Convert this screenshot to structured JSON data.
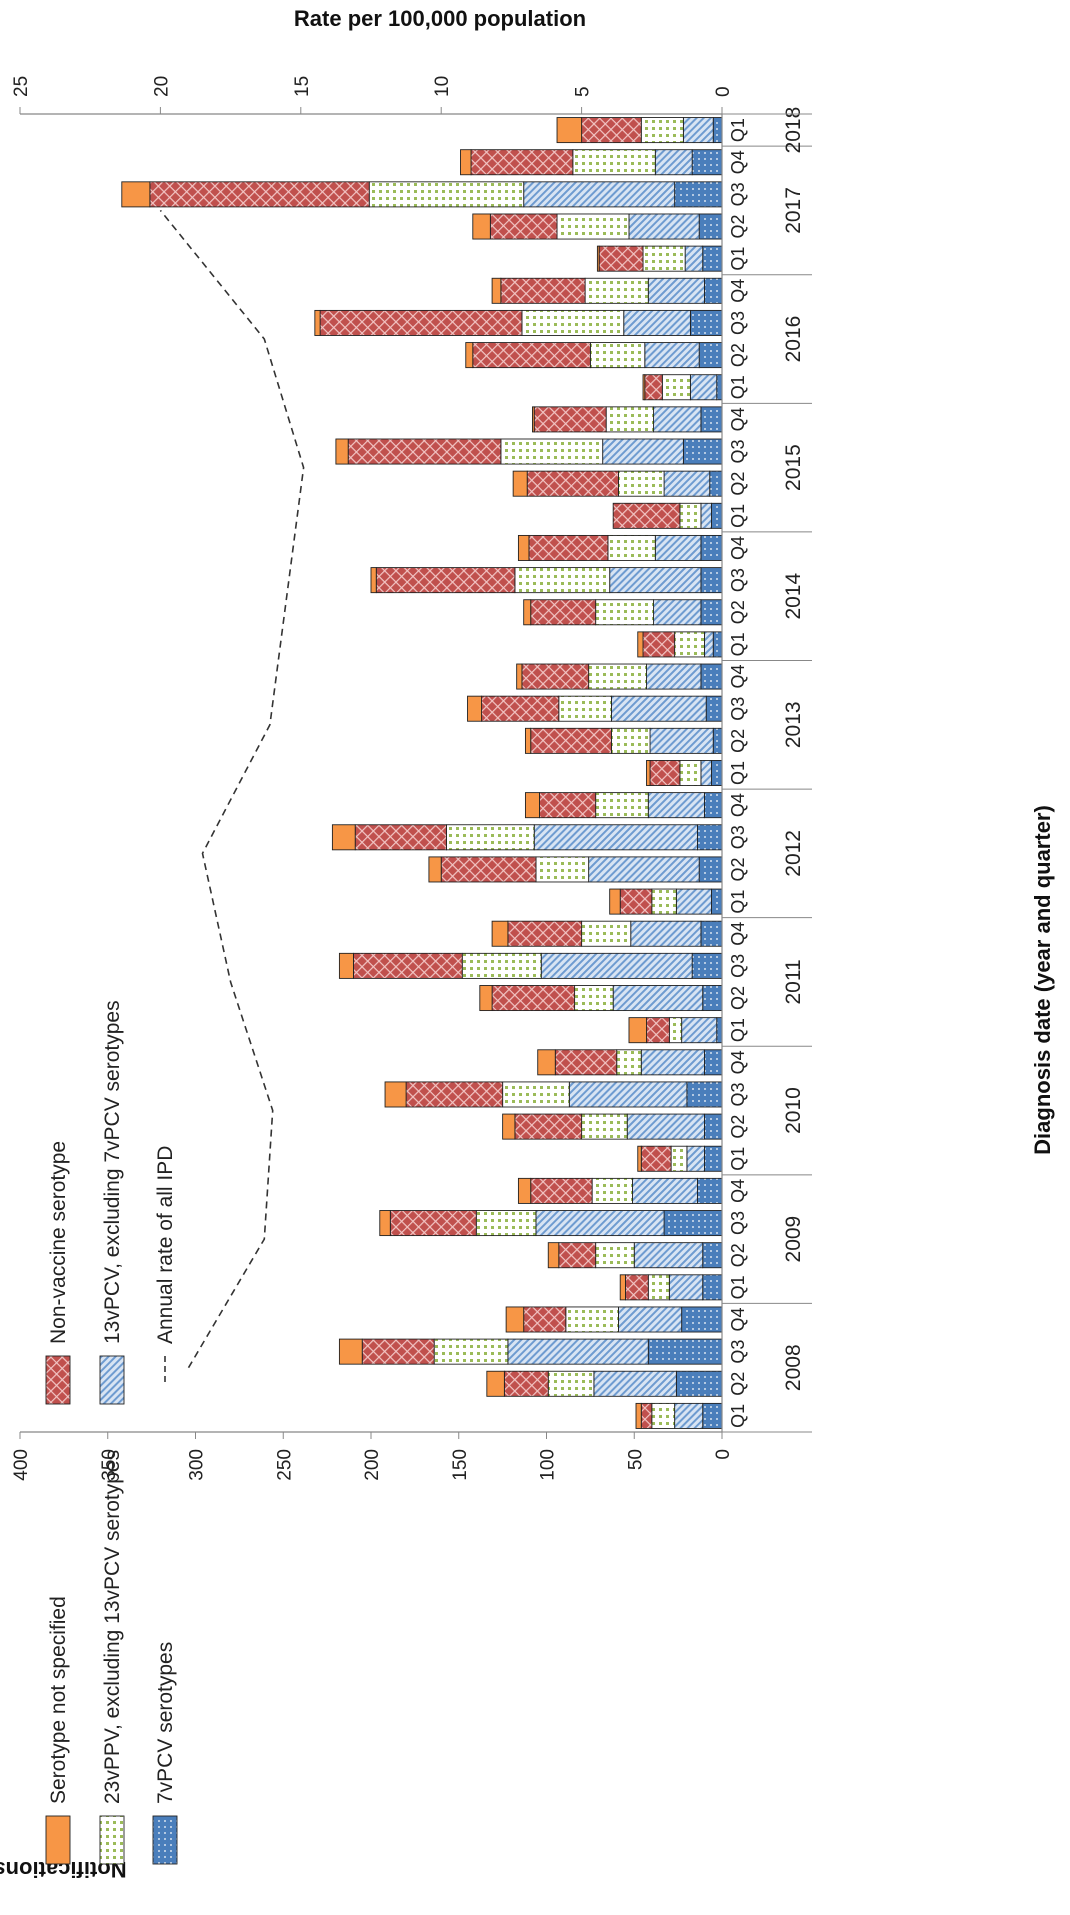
{
  "chart_data": {
    "type": "bar",
    "stacked": true,
    "orientation": "rotated-90",
    "left_axis": {
      "label": "Notifications",
      "ylim": [
        0,
        400
      ],
      "ticks": [
        0,
        50,
        100,
        150,
        200,
        250,
        300,
        350,
        400
      ]
    },
    "right_axis": {
      "label": "Rate per 100,000 population",
      "ylim": [
        0,
        25
      ],
      "ticks": [
        0,
        5,
        10,
        15,
        20,
        25
      ]
    },
    "xlabel": "Diagnosis date (year and quarter)",
    "years": [
      "2008",
      "2009",
      "2010",
      "2011",
      "2012",
      "2013",
      "2014",
      "2015",
      "2016",
      "2017",
      "2018"
    ],
    "categories": [
      "Q1",
      "Q2",
      "Q3",
      "Q4",
      "Q1",
      "Q2",
      "Q3",
      "Q4",
      "Q1",
      "Q2",
      "Q3",
      "Q4",
      "Q1",
      "Q2",
      "Q3",
      "Q4",
      "Q1",
      "Q2",
      "Q3",
      "Q4",
      "Q1",
      "Q2",
      "Q3",
      "Q4",
      "Q1",
      "Q2",
      "Q3",
      "Q4",
      "Q1",
      "Q2",
      "Q3",
      "Q4",
      "Q1",
      "Q2",
      "Q3",
      "Q4",
      "Q1",
      "Q2",
      "Q3",
      "Q4",
      "Q1"
    ],
    "series": [
      {
        "name": "7vPCV serotypes",
        "color": "#4A7EBB",
        "pattern": "dots",
        "values": [
          11,
          26,
          42,
          23,
          11,
          11,
          33,
          14,
          10,
          10,
          20,
          10,
          3,
          11,
          17,
          12,
          6,
          13,
          14,
          10,
          6,
          5,
          9,
          12,
          5,
          12,
          12,
          12,
          6,
          7,
          22,
          12,
          3,
          13,
          18,
          10,
          11,
          13,
          27,
          17,
          5
        ]
      },
      {
        "name": "13vPCV, excluding 7vPCV serotypes",
        "color": "#6E9BD0",
        "pattern": "hatch",
        "values": [
          16,
          47,
          80,
          36,
          19,
          39,
          73,
          37,
          10,
          44,
          67,
          36,
          20,
          51,
          86,
          40,
          20,
          63,
          93,
          32,
          6,
          36,
          54,
          31,
          5,
          27,
          52,
          26,
          6,
          26,
          46,
          27,
          15,
          31,
          38,
          32,
          10,
          40,
          86,
          21,
          17
        ]
      },
      {
        "name": "23vPPV, excluding 13vPCV serotypes",
        "color": "#9BBB59",
        "pattern": "grid-dots",
        "values": [
          13,
          26,
          42,
          30,
          12,
          22,
          34,
          23,
          9,
          26,
          38,
          14,
          7,
          22,
          45,
          28,
          14,
          30,
          50,
          30,
          12,
          22,
          30,
          33,
          17,
          33,
          54,
          27,
          12,
          26,
          58,
          27,
          16,
          31,
          58,
          36,
          24,
          41,
          88,
          47,
          24
        ]
      },
      {
        "name": "Non-vaccine serotype",
        "color": "#C0504D",
        "pattern": "crosshatch",
        "values": [
          6,
          25,
          41,
          24,
          13,
          21,
          49,
          35,
          17,
          38,
          55,
          35,
          13,
          47,
          62,
          42,
          18,
          54,
          52,
          32,
          17,
          46,
          44,
          38,
          18,
          37,
          79,
          45,
          38,
          52,
          87,
          41,
          10,
          67,
          115,
          48,
          25,
          38,
          125,
          58,
          34
        ]
      },
      {
        "name": "Serotype not specified",
        "color": "#F79646",
        "pattern": "solid",
        "values": [
          3,
          10,
          13,
          10,
          3,
          6,
          6,
          7,
          2,
          7,
          12,
          10,
          10,
          7,
          8,
          9,
          6,
          7,
          13,
          8,
          2,
          3,
          8,
          3,
          3,
          4,
          3,
          6,
          0,
          8,
          7,
          1,
          1,
          4,
          3,
          5,
          1,
          10,
          16,
          6,
          14
        ]
      }
    ],
    "line": {
      "name": "Annual rate of all IPD",
      "style": "dashed",
      "points": [
        {
          "year": "2008",
          "rate": 19.0
        },
        {
          "year": "2009",
          "rate": 16.3
        },
        {
          "year": "2010",
          "rate": 16.0
        },
        {
          "year": "2011",
          "rate": 17.5
        },
        {
          "year": "2012",
          "rate": 18.5
        },
        {
          "year": "2013",
          "rate": 16.1
        },
        {
          "year": "2015",
          "rate": 14.9
        },
        {
          "year": "2016",
          "rate": 16.3
        },
        {
          "year": "2017",
          "rate": 20.0
        }
      ]
    },
    "legend": [
      "Serotype not specified",
      "23vPPV, excluding 13vPCV serotypes",
      "7vPCV serotypes",
      "Non-vaccine serotype",
      "13vPCV, excluding 7vPCV serotypes",
      "Annual rate of all IPD"
    ],
    "grid": false
  }
}
